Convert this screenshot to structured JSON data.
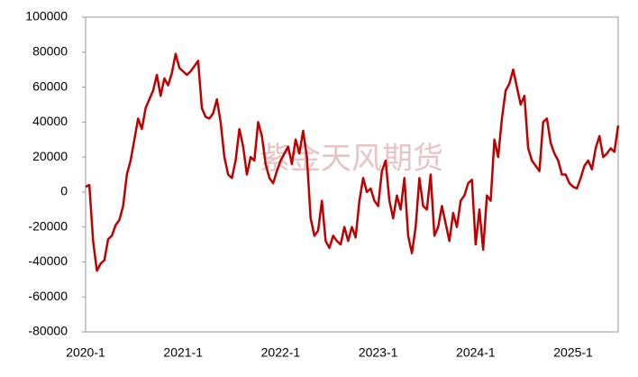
{
  "chart_data": {
    "type": "line",
    "watermark": "紫金天风期货",
    "color": "#c00000",
    "ylim": [
      -80000,
      100000
    ],
    "yticks": [
      -80000,
      -60000,
      -40000,
      -20000,
      0,
      20000,
      40000,
      60000,
      80000,
      100000
    ],
    "categories": [
      "2020-1",
      null,
      null,
      null,
      null,
      null,
      null,
      null,
      null,
      null,
      null,
      null,
      null,
      null,
      null,
      null,
      null,
      null,
      null,
      null,
      null,
      null,
      null,
      null,
      null,
      null,
      "2021-1",
      null,
      null,
      null,
      null,
      null,
      null,
      null,
      null,
      null,
      null,
      null,
      null,
      null,
      null,
      null,
      null,
      null,
      null,
      null,
      null,
      null,
      null,
      null,
      null,
      null,
      "2022-1",
      null,
      null,
      null,
      null,
      null,
      null,
      null,
      null,
      null,
      null,
      null,
      null,
      null,
      null,
      null,
      null,
      null,
      null,
      null,
      null,
      null,
      null,
      null,
      null,
      null,
      "2023-1",
      null,
      null,
      null,
      null,
      null,
      null,
      null,
      null,
      null,
      null,
      null,
      null,
      null,
      null,
      null,
      null,
      null,
      null,
      null,
      null,
      null,
      null,
      null,
      null,
      null,
      "2024-1",
      null,
      null,
      null,
      null,
      null,
      null,
      null,
      null,
      null,
      null,
      null,
      null,
      null,
      null,
      null,
      null,
      null,
      null,
      null,
      null,
      null,
      null,
      null,
      null,
      null,
      "2025-1",
      null,
      null,
      null,
      null,
      null,
      null,
      null,
      null,
      null,
      null,
      null,
      null
    ],
    "values": [
      3000,
      4000,
      -28000,
      -45000,
      -41000,
      -39000,
      -27000,
      -25000,
      -19000,
      -16000,
      -8000,
      10000,
      18000,
      30000,
      42000,
      36000,
      48000,
      53000,
      58000,
      67000,
      55000,
      65000,
      61000,
      68000,
      79000,
      71000,
      69000,
      67000,
      69000,
      72000,
      75000,
      48000,
      43000,
      42000,
      45000,
      53000,
      40000,
      20000,
      10000,
      8000,
      18000,
      36000,
      26000,
      10000,
      20000,
      18000,
      40000,
      32000,
      16000,
      8000,
      5000,
      12000,
      18000,
      22000,
      26000,
      16000,
      30000,
      22000,
      35000,
      20000,
      -15000,
      -25000,
      -22000,
      -5000,
      -28000,
      -32000,
      -25000,
      -28000,
      -30000,
      -20000,
      -28000,
      -20000,
      -26000,
      -5000,
      8000,
      0,
      2000,
      -5000,
      -8000,
      12000,
      18000,
      -5000,
      -15000,
      -2000,
      -10000,
      8000,
      -25000,
      -35000,
      -20000,
      8000,
      -8000,
      -10000,
      10000,
      -25000,
      -20000,
      -8000,
      -18000,
      -28000,
      -12000,
      -20000,
      -5000,
      -2000,
      5000,
      7000,
      -30000,
      -10000,
      -33000,
      -2000,
      -5000,
      30000,
      20000,
      42000,
      58000,
      62000,
      70000,
      60000,
      50000,
      55000,
      25000,
      18000,
      15000,
      12000,
      40000,
      42000,
      28000,
      22000,
      18000,
      10000,
      10000,
      5000,
      3000,
      2000,
      8000,
      15000,
      18000,
      13000,
      25000,
      32000,
      20000,
      22000,
      25000,
      23000,
      38000
    ]
  }
}
